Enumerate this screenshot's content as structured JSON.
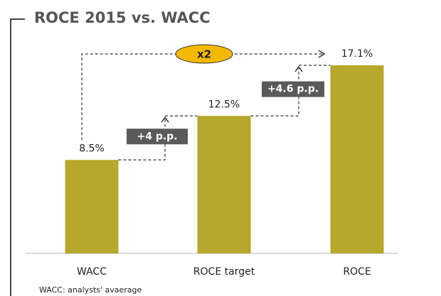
{
  "chart_data": {
    "type": "bar",
    "title": "ROCE 2015 vs. WACC",
    "categories": [
      "WACC",
      "ROCE target",
      "ROCE"
    ],
    "values": [
      8.5,
      12.5,
      17.1
    ],
    "value_labels": [
      "8.5%",
      "12.5%",
      "17.1%"
    ],
    "color": "#b5a82a",
    "annotations": [
      "+4 p.p.",
      "+4.6 p.p.",
      "x2"
    ],
    "footnote": "WACC: analysts' avaerage"
  }
}
